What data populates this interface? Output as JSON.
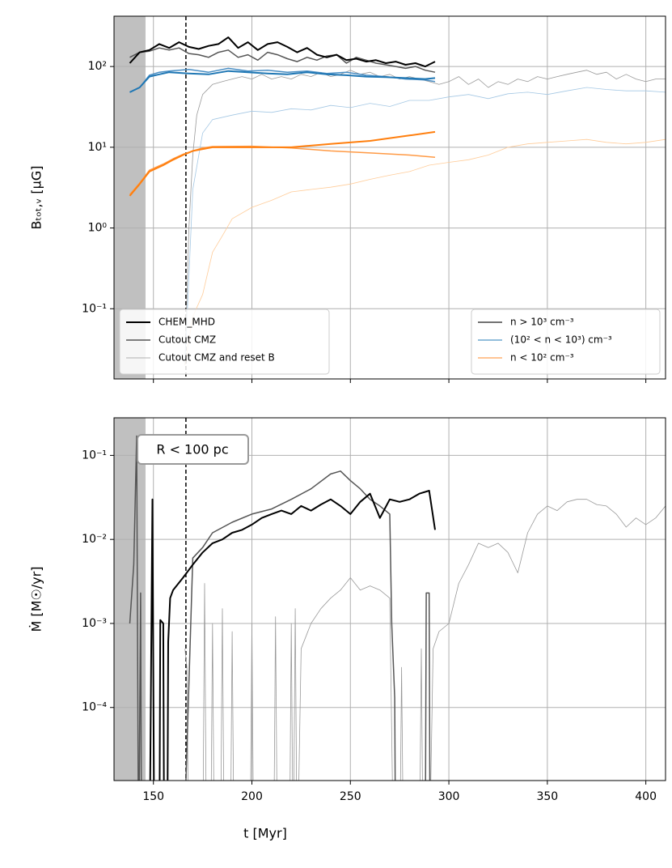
{
  "chart_data": [
    {
      "type": "line",
      "ylabel": "Bₜₒₜ,ᵥ [μG]",
      "log_y": true,
      "grid": true,
      "xlim": [
        130,
        410
      ],
      "xticks": [
        150,
        200,
        250,
        300,
        350,
        400
      ],
      "ylim": [
        0.0135,
        420
      ],
      "yticks": [
        {
          "value": 0.1,
          "label": "10⁻¹"
        },
        {
          "value": 1,
          "label": "10⁰"
        },
        {
          "value": 10,
          "label": "10¹"
        },
        {
          "value": 100,
          "label": "10²"
        }
      ],
      "shaded_span": [
        130,
        146
      ],
      "shade_color": "#c0c0c0",
      "vline": 166.5,
      "legends": [
        {
          "loc": "lower left",
          "entries": [
            {
              "name": "CHEM_MHD",
              "color": "#000000",
              "width": 2
            },
            {
              "name": "Cutout CMZ",
              "color": "#555555",
              "width": 1.5
            },
            {
              "name": "Cutout CMZ and reset B",
              "color": "#999999",
              "width": 0.8
            }
          ]
        },
        {
          "loc": "lower right",
          "entries": [
            {
              "name": "n > 10³ cm⁻³",
              "color": "#444444",
              "width": 1.5
            },
            {
              "name": "(10² < n < 10³) cm⁻³",
              "color": "#6fa8d0",
              "width": 1.5
            },
            {
              "name": "n < 10² cm⁻³",
              "color": "#ffb070",
              "width": 1.5
            }
          ]
        }
      ],
      "series": [
        {
          "color": "#999999",
          "width": 0.8,
          "x": [
            166,
            168,
            170,
            172,
            175,
            180,
            185,
            190,
            195,
            200,
            205,
            210,
            215,
            220,
            225,
            230,
            235,
            240,
            245,
            250,
            255,
            260,
            265,
            270,
            275,
            280,
            285,
            290,
            295,
            300,
            305,
            310,
            315,
            320,
            325,
            330,
            335,
            340,
            345,
            350,
            355,
            360,
            365,
            370,
            375,
            380,
            385,
            390,
            395,
            400,
            405,
            410
          ],
          "values": [
            0.02,
            1,
            8,
            25,
            45,
            60,
            65,
            70,
            75,
            70,
            80,
            70,
            75,
            70,
            80,
            75,
            85,
            75,
            80,
            90,
            80,
            85,
            75,
            80,
            70,
            75,
            70,
            65,
            60,
            65,
            75,
            60,
            70,
            55,
            65,
            60,
            70,
            65,
            75,
            70,
            75,
            80,
            85,
            90,
            80,
            85,
            70,
            80,
            70,
            65,
            70,
            70
          ]
        },
        {
          "color": "#a5c8e4",
          "width": 0.8,
          "x": [
            166,
            170,
            175,
            180,
            190,
            200,
            210,
            220,
            230,
            240,
            250,
            260,
            270,
            280,
            290,
            300,
            310,
            320,
            330,
            340,
            350,
            360,
            370,
            380,
            390,
            400,
            410
          ],
          "values": [
            0.02,
            3,
            15,
            22,
            25,
            28,
            27,
            30,
            29,
            33,
            31,
            35,
            32,
            38,
            38,
            42,
            45,
            40,
            46,
            48,
            45,
            50,
            55,
            52,
            50,
            50,
            48
          ]
        },
        {
          "color": "#ffcc99",
          "width": 0.8,
          "x": [
            166,
            170,
            175,
            180,
            185,
            190,
            200,
            210,
            220,
            230,
            240,
            250,
            260,
            270,
            280,
            290,
            300,
            310,
            320,
            330,
            340,
            350,
            360,
            370,
            380,
            390,
            400,
            410
          ],
          "values": [
            0.02,
            0.08,
            0.15,
            0.5,
            0.8,
            1.3,
            1.8,
            2.2,
            2.8,
            3,
            3.2,
            3.5,
            4,
            4.5,
            5,
            6,
            6.5,
            7,
            8,
            10,
            11,
            11.5,
            12,
            12.5,
            11.5,
            11,
            11.5,
            12.5
          ]
        },
        {
          "color": "#555555",
          "width": 1.5,
          "x": [
            138,
            143,
            148,
            153,
            158,
            163,
            168,
            173,
            178,
            183,
            188,
            193,
            198,
            203,
            208,
            213,
            218,
            223,
            228,
            233,
            238,
            243,
            248,
            253,
            258,
            263,
            268,
            273,
            278,
            283,
            288,
            293
          ],
          "values": [
            130,
            150,
            155,
            170,
            160,
            170,
            145,
            140,
            130,
            150,
            160,
            130,
            140,
            120,
            150,
            140,
            125,
            115,
            130,
            120,
            135,
            140,
            110,
            130,
            120,
            110,
            105,
            100,
            95,
            100,
            90,
            85
          ]
        },
        {
          "color": "#4a8ec4",
          "width": 1.5,
          "x": [
            138,
            143,
            148,
            153,
            158,
            168,
            178,
            188,
            198,
            208,
            218,
            228,
            238,
            248,
            258,
            268,
            278,
            288,
            293
          ],
          "values": [
            48,
            55,
            78,
            85,
            88,
            92,
            85,
            95,
            88,
            90,
            85,
            88,
            82,
            85,
            78,
            75,
            70,
            68,
            65
          ]
        },
        {
          "color": "#ff9a45",
          "width": 1.5,
          "x": [
            138,
            143,
            148,
            155,
            160,
            165,
            170,
            175,
            180,
            200,
            220,
            240,
            260,
            280,
            293
          ],
          "values": [
            2.6,
            3.6,
            5.2,
            6.2,
            7.2,
            8.2,
            9,
            9.8,
            10.2,
            10.3,
            9.8,
            9,
            8.5,
            8,
            7.5
          ]
        },
        {
          "color": "#000000",
          "width": 2,
          "x": [
            138,
            143,
            148,
            153,
            158,
            163,
            168,
            173,
            178,
            183,
            188,
            193,
            198,
            203,
            208,
            213,
            218,
            223,
            228,
            233,
            238,
            243,
            248,
            253,
            258,
            263,
            268,
            273,
            278,
            283,
            288,
            293
          ],
          "values": [
            110,
            150,
            160,
            190,
            170,
            200,
            175,
            165,
            180,
            190,
            230,
            170,
            200,
            160,
            190,
            200,
            175,
            150,
            170,
            140,
            130,
            140,
            120,
            125,
            115,
            120,
            110,
            115,
            105,
            110,
            100,
            115
          ]
        },
        {
          "color": "#1f77b4",
          "width": 2,
          "x": [
            138,
            143,
            148,
            153,
            158,
            168,
            178,
            188,
            198,
            208,
            218,
            228,
            238,
            248,
            258,
            268,
            278,
            288,
            293
          ],
          "values": [
            48,
            55,
            75,
            80,
            85,
            82,
            80,
            88,
            85,
            82,
            80,
            85,
            80,
            78,
            75,
            74,
            72,
            70,
            72
          ]
        },
        {
          "color": "#ff7f0e",
          "width": 2,
          "x": [
            138,
            143,
            148,
            155,
            160,
            165,
            170,
            175,
            180,
            200,
            220,
            240,
            260,
            280,
            293
          ],
          "values": [
            2.5,
            3.5,
            5,
            6,
            7,
            8,
            9,
            9.5,
            10,
            10,
            10,
            11,
            12,
            14,
            15.5
          ]
        }
      ]
    },
    {
      "type": "line",
      "xlabel": "t [Myr]",
      "ylabel": "Ṁ [M☉/yr]",
      "log_y": true,
      "grid": true,
      "annotation": "R < 100 pc",
      "xlim": [
        130,
        410
      ],
      "xticks": [
        150,
        200,
        250,
        300,
        350,
        400
      ],
      "ylim": [
        1.35e-05,
        0.28
      ],
      "yticks": [
        {
          "value": 0.0001,
          "label": "10⁻⁴"
        },
        {
          "value": 0.001,
          "label": "10⁻³"
        },
        {
          "value": 0.01,
          "label": "10⁻²"
        },
        {
          "value": 0.1,
          "label": "10⁻¹"
        }
      ],
      "shaded_span": [
        130,
        146
      ],
      "shade_color": "#c0c0c0",
      "vline": 166.5,
      "series": [
        {
          "color": "#999999",
          "width": 0.8,
          "x": [
            166,
            167,
            168,
            175,
            176,
            177,
            179,
            180,
            181,
            184,
            185,
            186,
            189,
            190,
            191,
            199,
            200,
            201,
            211,
            212,
            213,
            219,
            220,
            221,
            222,
            223,
            225,
            230,
            235,
            240,
            245,
            250,
            255,
            260,
            265,
            270,
            272,
            275,
            276,
            277,
            285,
            286,
            287,
            290,
            292,
            295,
            300,
            305,
            310,
            315,
            320,
            325,
            330,
            335,
            340,
            345,
            350,
            355,
            360,
            365,
            370,
            375,
            380,
            385,
            390,
            395,
            400,
            405,
            410
          ],
          "values": [
            0.0005,
            0.0003,
            1e-06,
            1e-06,
            0.003,
            1e-06,
            1e-06,
            0.001,
            1e-06,
            1e-06,
            0.0015,
            1e-06,
            1e-06,
            0.0008,
            1e-06,
            1e-06,
            0.001,
            1e-06,
            1e-06,
            0.0012,
            1e-06,
            1e-06,
            0.001,
            1e-06,
            0.0015,
            1e-06,
            0.0005,
            0.001,
            0.0015,
            0.002,
            0.0025,
            0.0035,
            0.0025,
            0.0028,
            0.0025,
            0.002,
            1e-06,
            1e-06,
            0.0003,
            1e-06,
            1e-06,
            0.0005,
            1e-06,
            1e-06,
            0.0005,
            0.0008,
            0.001,
            0.003,
            0.005,
            0.009,
            0.008,
            0.009,
            0.007,
            0.004,
            0.012,
            0.02,
            0.025,
            0.022,
            0.028,
            0.03,
            0.03,
            0.026,
            0.025,
            0.02,
            0.014,
            0.018,
            0.015,
            0.018,
            0.025
          ]
        },
        {
          "color": "#555555",
          "width": 1.5,
          "x": [
            138,
            140,
            141.5,
            142.5,
            143.5,
            144,
            165,
            170,
            175,
            180,
            190,
            200,
            210,
            220,
            230,
            240,
            245,
            250,
            255,
            260,
            265,
            270,
            271,
            272.5,
            273,
            288,
            288.5,
            290,
            290.5
          ],
          "values": [
            0.001,
            0.005,
            0.17,
            1e-06,
            0.0023,
            1e-06,
            1e-06,
            0.006,
            0.008,
            0.012,
            0.016,
            0.02,
            0.023,
            0.03,
            0.04,
            0.06,
            0.065,
            0.05,
            0.04,
            0.03,
            0.025,
            0.02,
            0.001,
            0.00013,
            1e-06,
            1e-06,
            0.0023,
            0.0023,
            1e-06
          ]
        },
        {
          "color": "#000000",
          "width": 2,
          "x": [
            148,
            149.5,
            150.5,
            153,
            153.5,
            155,
            155.5,
            157,
            157.5,
            158.5,
            160,
            165,
            170,
            175,
            180,
            185,
            190,
            195,
            200,
            205,
            210,
            215,
            220,
            225,
            230,
            235,
            240,
            245,
            250,
            255,
            260,
            265,
            270,
            275,
            280,
            285,
            290,
            293
          ],
          "values": [
            1e-06,
            0.03,
            1e-06,
            1e-06,
            0.0011,
            0.001,
            1e-06,
            1e-06,
            0.0006,
            0.002,
            0.0025,
            0.0035,
            0.005,
            0.007,
            0.009,
            0.01,
            0.012,
            0.013,
            0.015,
            0.018,
            0.02,
            0.022,
            0.02,
            0.025,
            0.022,
            0.026,
            0.03,
            0.025,
            0.02,
            0.028,
            0.035,
            0.018,
            0.03,
            0.028,
            0.03,
            0.035,
            0.038,
            0.013
          ]
        }
      ]
    }
  ]
}
